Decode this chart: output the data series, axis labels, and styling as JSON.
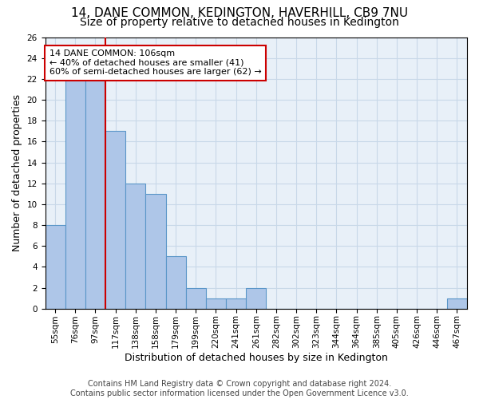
{
  "title": "14, DANE COMMON, KEDINGTON, HAVERHILL, CB9 7NU",
  "subtitle": "Size of property relative to detached houses in Kedington",
  "xlabel": "Distribution of detached houses by size in Kedington",
  "ylabel": "Number of detached properties",
  "categories": [
    "55sqm",
    "76sqm",
    "97sqm",
    "117sqm",
    "138sqm",
    "158sqm",
    "179sqm",
    "199sqm",
    "220sqm",
    "241sqm",
    "261sqm",
    "282sqm",
    "302sqm",
    "323sqm",
    "344sqm",
    "364sqm",
    "385sqm",
    "405sqm",
    "426sqm",
    "446sqm",
    "467sqm"
  ],
  "values": [
    8,
    22,
    22,
    17,
    12,
    11,
    5,
    2,
    1,
    1,
    2,
    0,
    0,
    0,
    0,
    0,
    0,
    0,
    0,
    0,
    1
  ],
  "bar_color": "#aec6e8",
  "bar_edge_color": "#5a96c8",
  "vline_x": 2.5,
  "vline_color": "#cc0000",
  "annotation_text": "14 DANE COMMON: 106sqm\n← 40% of detached houses are smaller (41)\n60% of semi-detached houses are larger (62) →",
  "annotation_box_color": "#ffffff",
  "annotation_box_edge_color": "#cc0000",
  "ylim": [
    0,
    26
  ],
  "yticks": [
    0,
    2,
    4,
    6,
    8,
    10,
    12,
    14,
    16,
    18,
    20,
    22,
    24,
    26
  ],
  "grid_color": "#c8d8e8",
  "background_color": "#e8f0f8",
  "footer_line1": "Contains HM Land Registry data © Crown copyright and database right 2024.",
  "footer_line2": "Contains public sector information licensed under the Open Government Licence v3.0.",
  "title_fontsize": 11,
  "subtitle_fontsize": 10,
  "xlabel_fontsize": 9,
  "ylabel_fontsize": 9,
  "tick_fontsize": 7.5,
  "annotation_fontsize": 8,
  "footer_fontsize": 7
}
